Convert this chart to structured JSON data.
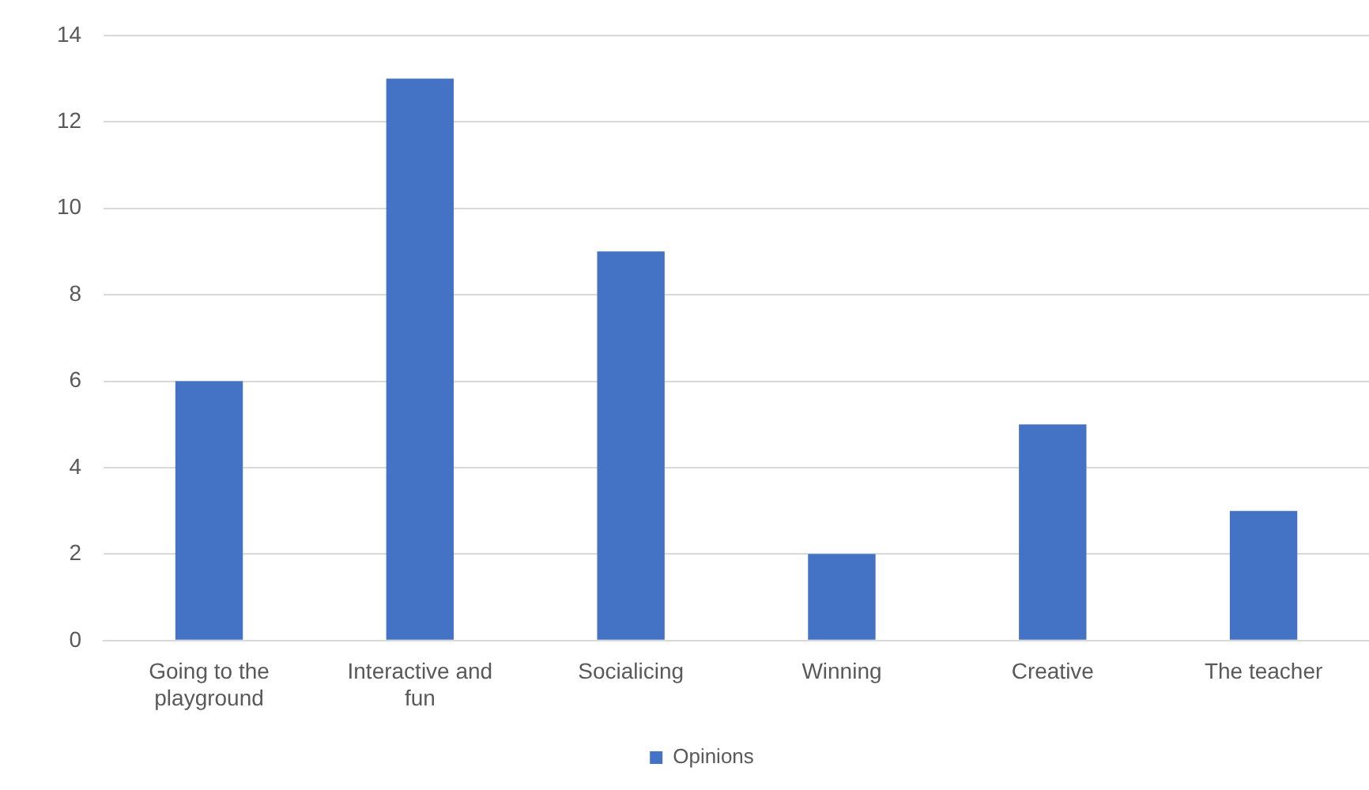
{
  "chart_data": {
    "type": "bar",
    "categories": [
      "Going to the playground",
      "Interactive and fun",
      "Socialicing",
      "Winning",
      "Creative",
      "The teacher"
    ],
    "series": [
      {
        "name": "Opinions",
        "color": "#4472c4",
        "values": [
          6,
          13,
          9,
          2,
          5,
          3
        ]
      }
    ],
    "ylim": [
      0,
      14
    ],
    "yticks": [
      0,
      2,
      4,
      6,
      8,
      10,
      12,
      14
    ],
    "grid": "y",
    "legend": "bottom"
  }
}
